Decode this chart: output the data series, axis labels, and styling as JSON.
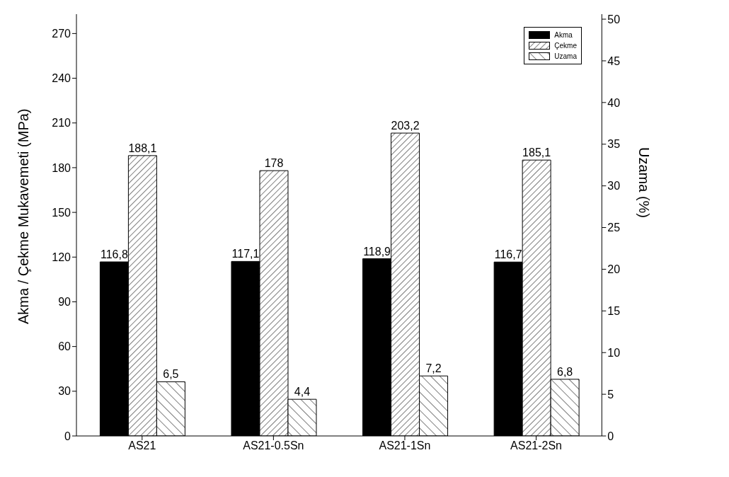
{
  "chart_data": {
    "type": "bar",
    "categories": [
      "AS21",
      "AS21-0.5Sn",
      "AS21-1Sn",
      "AS21-2Sn"
    ],
    "series": [
      {
        "name": "Akma",
        "color": "#000000",
        "values": [
          116.8,
          117.1,
          118.9,
          116.7
        ],
        "value_labels": [
          "116,8",
          "117,1",
          "118,9",
          "116,7"
        ]
      },
      {
        "name": "Çekme",
        "color": "#000000",
        "values": [
          188.1,
          178,
          203.2,
          185.1
        ],
        "value_labels": [
          "188,1",
          "178",
          "203,2",
          "185,1"
        ]
      },
      {
        "name": "Uzama",
        "color": "#000000",
        "axis": "y2",
        "values": [
          6.5,
          4.4,
          7.2,
          6.8
        ],
        "value_labels": [
          "6,5",
          "4,4",
          "7,2",
          "6,8"
        ]
      }
    ],
    "ylabel": "Akma / Çekme Mukavemeti (MPa)",
    "y2label": "Uzama (%)",
    "ylim": [
      0,
      283
    ],
    "yticks": [
      0,
      30,
      60,
      90,
      120,
      150,
      180,
      210,
      240,
      270
    ],
    "y2lim": [
      0,
      50.6
    ],
    "y2ticks": [
      0,
      5,
      10,
      15,
      20,
      25,
      30,
      35,
      40,
      45,
      50
    ],
    "legend": "top right",
    "grid": false
  }
}
